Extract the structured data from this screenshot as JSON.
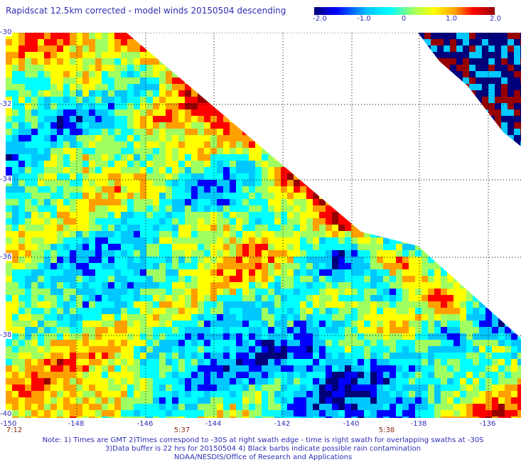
{
  "title": "Rapidscat 12.5km corrected - model winds 20150504 descending",
  "colorbar": {
    "ticks": [
      "-2.0",
      "-1.0",
      "0",
      "1.0",
      "2.0"
    ],
    "range": [
      -2.0,
      2.0
    ]
  },
  "axes": {
    "lat_labels": [
      "-30",
      "-32",
      "-34",
      "-36",
      "-38",
      "-40"
    ],
    "lon_labels": [
      "-150",
      "-148",
      "-146",
      "-144",
      "-142",
      "-140",
      "-138",
      "-136"
    ],
    "lat_range": [
      -40,
      -30
    ],
    "lon_range": [
      -150,
      -136.6
    ]
  },
  "time_labels": [
    "7:12",
    "5:37",
    "5:38"
  ],
  "notes": [
    "Note: 1) Times are GMT 2)Times correspond to -30S at right swath edge - time is right swath for overlapping swaths at -30S",
    "3)Data buffer is 22 hrs for 20150504 4) Black barbs indicate possible rain contamination",
    "NOAA/NESDIS/Office of Research and Applications"
  ],
  "chart_data": {
    "type": "heatmap",
    "title": "Rapidscat 12.5km corrected - model winds 20150504 descending",
    "value_range": [
      -2.0,
      2.0
    ],
    "x_range": [
      -150,
      -136.6
    ],
    "y_range": [
      -40,
      -30
    ],
    "grid": true,
    "colorscale": [
      "#00007a",
      "#0000ff",
      "#00c8ff",
      "#00ffff",
      "#a0ff60",
      "#ffff00",
      "#ffa000",
      "#ff0000",
      "#960000"
    ]
  }
}
